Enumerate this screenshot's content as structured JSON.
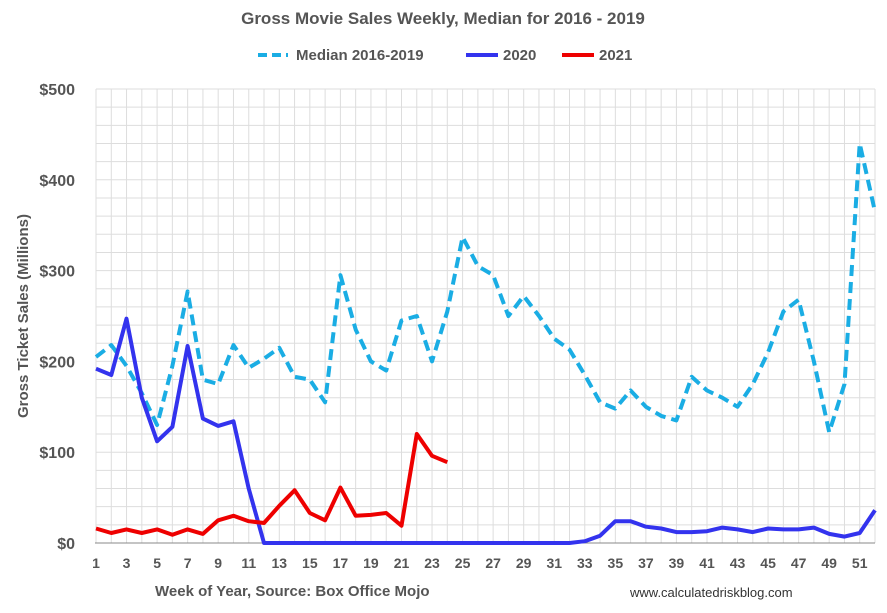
{
  "chart_data": {
    "type": "line",
    "title": "Gross Movie Sales Weekly, Median for 2016 - 2019",
    "xlabel": "Week of Year, Source: Box Office Mojo",
    "ylabel": "Gross Ticket Sales (Millions)",
    "source": "www.calculatedriskblog.com",
    "xlim": [
      1,
      52
    ],
    "ylim": [
      0,
      500
    ],
    "x_ticks": [
      "1",
      "3",
      "5",
      "7",
      "9",
      "11",
      "13",
      "15",
      "17",
      "19",
      "21",
      "23",
      "25",
      "27",
      "29",
      "31",
      "33",
      "35",
      "37",
      "39",
      "41",
      "43",
      "45",
      "47",
      "49",
      "51"
    ],
    "y_ticks": [
      "$0",
      "$100",
      "$200",
      "$300",
      "$400",
      "$500"
    ],
    "series": [
      {
        "name": "Median 2016-2019",
        "color": "#1AADE4",
        "dash": true,
        "x": [
          1,
          2,
          3,
          4,
          5,
          6,
          7,
          8,
          9,
          10,
          11,
          12,
          13,
          14,
          15,
          16,
          17,
          18,
          19,
          20,
          21,
          22,
          23,
          24,
          25,
          26,
          27,
          28,
          29,
          30,
          31,
          32,
          33,
          34,
          35,
          36,
          37,
          38,
          39,
          40,
          41,
          42,
          43,
          44,
          45,
          46,
          47,
          48,
          49,
          50,
          51,
          52
        ],
        "values": [
          205,
          218,
          195,
          165,
          130,
          195,
          277,
          180,
          175,
          218,
          193,
          203,
          215,
          183,
          180,
          155,
          295,
          235,
          200,
          190,
          245,
          250,
          200,
          255,
          337,
          305,
          295,
          250,
          272,
          250,
          225,
          213,
          185,
          155,
          148,
          168,
          150,
          140,
          135,
          183,
          168,
          160,
          150,
          175,
          210,
          255,
          268,
          200,
          122,
          175,
          440,
          365
        ]
      },
      {
        "name": "2020",
        "color": "#3333EE",
        "dash": false,
        "x": [
          1,
          2,
          3,
          4,
          5,
          6,
          7,
          8,
          9,
          10,
          11,
          12,
          13,
          14,
          15,
          16,
          17,
          18,
          19,
          20,
          21,
          22,
          23,
          24,
          25,
          26,
          27,
          28,
          29,
          30,
          31,
          32,
          33,
          34,
          35,
          36,
          37,
          38,
          39,
          40,
          41,
          42,
          43,
          44,
          45,
          46,
          47,
          48,
          49,
          50,
          51,
          52
        ],
        "values": [
          192,
          185,
          247,
          160,
          112,
          128,
          217,
          137,
          129,
          134,
          60,
          0,
          0,
          0,
          0,
          0,
          0,
          0,
          0,
          0,
          0,
          0,
          0,
          0,
          0,
          0,
          0,
          0,
          0,
          0,
          0,
          0,
          2,
          8,
          24,
          24,
          18,
          16,
          12,
          12,
          13,
          17,
          15,
          12,
          16,
          15,
          15,
          17,
          10,
          7,
          11,
          36
        ]
      },
      {
        "name": "2021",
        "color": "#EE0000",
        "dash": false,
        "x": [
          1,
          2,
          3,
          4,
          5,
          6,
          7,
          8,
          9,
          10,
          11,
          12,
          13,
          14,
          15,
          16,
          17,
          18,
          19,
          20,
          21,
          22,
          23,
          24
        ],
        "values": [
          16,
          11,
          15,
          11,
          15,
          9,
          15,
          10,
          25,
          30,
          24,
          22,
          41,
          58,
          33,
          25,
          61,
          30,
          31,
          33,
          19,
          120,
          96,
          89
        ]
      }
    ]
  }
}
